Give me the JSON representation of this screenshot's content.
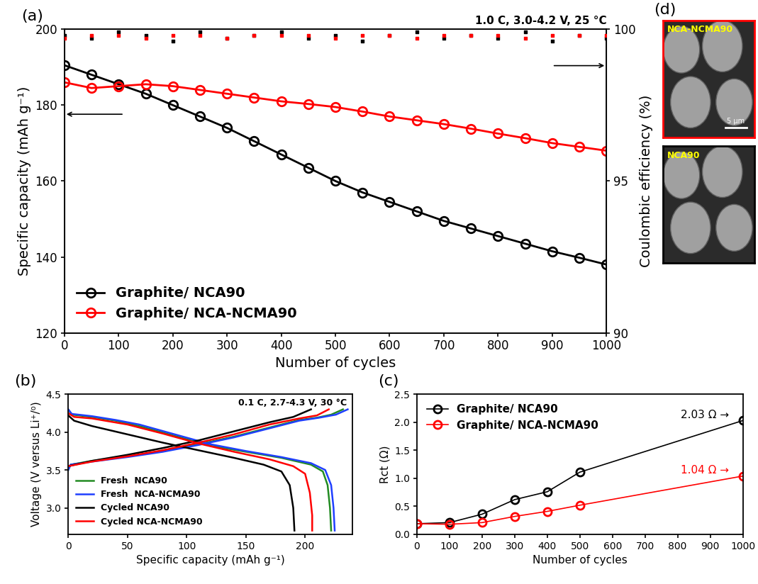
{
  "chart_data": [
    {
      "type": "line",
      "title": "(a)",
      "annotations": [
        "1.0 C, 3.0-4.2 V, 25 °C"
      ],
      "x_label": "Number of cycles",
      "y_label": "Specific capacity (mAh g⁻¹)",
      "y2_label": "Coulombic efficiency (%)",
      "xlim": [
        0,
        1000
      ],
      "xticks": [
        0,
        100,
        200,
        300,
        400,
        500,
        600,
        700,
        800,
        900,
        1000
      ],
      "ylim": [
        120,
        200
      ],
      "yticks": [
        120,
        140,
        160,
        180,
        200
      ],
      "y2lim": [
        90,
        100
      ],
      "y2ticks": [
        90,
        95,
        100
      ],
      "legend": "lower left",
      "x": [
        0,
        50,
        100,
        150,
        200,
        250,
        300,
        350,
        400,
        450,
        500,
        550,
        600,
        650,
        700,
        750,
        800,
        850,
        900,
        950,
        1000
      ],
      "series": [
        {
          "name": "Graphite/ NCA90",
          "color": "#000000",
          "marker": "o",
          "values": [
            190.5,
            188,
            185.5,
            183,
            180,
            177,
            174,
            170.5,
            167,
            163.5,
            160,
            157,
            154.5,
            152,
            149.5,
            147.5,
            145.5,
            143.5,
            141.5,
            139.8,
            138
          ]
        },
        {
          "name": "Graphite/ NCA-NCMA90",
          "color": "#ff0000",
          "marker": "o",
          "values": [
            186,
            184.5,
            185,
            185.5,
            185,
            184,
            183,
            182,
            181,
            180.3,
            179.5,
            178.3,
            177,
            176,
            175,
            173.8,
            172.5,
            171.3,
            170,
            169,
            168
          ]
        },
        {
          "type": "scatter",
          "axis": "y2",
          "color": "#000000",
          "marker": "s",
          "values": [
            99.8,
            99.7,
            99.9,
            99.8,
            99.6,
            99.9,
            99.7,
            99.8,
            99.9,
            99.7,
            99.8,
            99.6,
            99.8,
            99.9,
            99.7,
            99.8,
            99.7,
            99.9,
            99.6,
            99.8,
            99.7
          ]
        },
        {
          "type": "scatter",
          "axis": "y2",
          "color": "#ff0000",
          "marker": "s",
          "values": [
            99.7,
            99.8,
            99.8,
            99.7,
            99.8,
            99.8,
            99.7,
            99.8,
            99.8,
            99.8,
            99.7,
            99.8,
            99.8,
            99.7,
            99.8,
            99.8,
            99.8,
            99.7,
            99.8,
            99.8,
            99.8
          ]
        }
      ]
    },
    {
      "type": "line",
      "title": "(b)",
      "annotations": [
        "0.1 C, 2.7-4.3 V, 30 °C"
      ],
      "x_label": "Specific capacity (mAh g⁻¹)",
      "y_label": "Voltage (V versus Li⁺/⁰)",
      "xlim": [
        0,
        240
      ],
      "xticks": [
        0,
        50,
        100,
        150,
        200
      ],
      "ylim": [
        2.65,
        4.5
      ],
      "yticks": [
        3.0,
        3.5,
        4.0,
        4.5
      ],
      "legend": "lower left",
      "series": [
        {
          "name": "Fresh  NCA90",
          "color": "#228b22",
          "x": [
            0,
            2,
            20,
            50,
            80,
            110,
            140,
            170,
            195,
            210,
            222,
            232,
            null,
            0,
            3,
            20,
            40,
            60,
            90,
            120,
            150,
            180,
            205,
            215,
            219,
            221,
            222
          ],
          "values": [
            3.5,
            3.57,
            3.62,
            3.68,
            3.75,
            3.84,
            3.94,
            4.06,
            4.16,
            4.19,
            4.23,
            4.3,
            null,
            4.3,
            4.23,
            4.2,
            4.15,
            4.08,
            3.95,
            3.82,
            3.74,
            3.66,
            3.57,
            3.48,
            3.3,
            3.0,
            2.7
          ]
        },
        {
          "name": "Fresh  NCA-NCMA90",
          "color": "#1f3fff",
          "x": [
            0,
            2,
            20,
            50,
            80,
            110,
            140,
            170,
            195,
            212,
            226,
            236,
            null,
            0,
            3,
            20,
            40,
            60,
            90,
            120,
            150,
            180,
            205,
            217,
            222,
            224,
            225
          ],
          "values": [
            3.5,
            3.57,
            3.61,
            3.67,
            3.74,
            3.83,
            3.93,
            4.05,
            4.15,
            4.19,
            4.23,
            4.3,
            null,
            4.3,
            4.24,
            4.21,
            4.16,
            4.1,
            3.97,
            3.84,
            3.75,
            3.67,
            3.59,
            3.5,
            3.3,
            3.0,
            2.7
          ]
        },
        {
          "name": "Cycled NCA90",
          "color": "#000000",
          "x": [
            0,
            20,
            50,
            80,
            110,
            140,
            170,
            190,
            205,
            null,
            0,
            5,
            20,
            50,
            80,
            110,
            140,
            165,
            180,
            187,
            190,
            191
          ],
          "values": [
            3.55,
            3.62,
            3.7,
            3.79,
            3.89,
            4.01,
            4.13,
            4.2,
            4.3,
            null,
            4.22,
            4.15,
            4.08,
            3.97,
            3.86,
            3.76,
            3.66,
            3.57,
            3.48,
            3.3,
            3.0,
            2.7
          ]
        },
        {
          "name": "Cycled NCA-NCMA90",
          "color": "#ff0000",
          "x": [
            0,
            20,
            50,
            80,
            110,
            140,
            170,
            195,
            210,
            220,
            null,
            0,
            5,
            20,
            50,
            80,
            110,
            140,
            170,
            190,
            200,
            204,
            206,
            206
          ],
          "values": [
            3.55,
            3.61,
            3.68,
            3.76,
            3.86,
            3.97,
            4.1,
            4.18,
            4.22,
            4.3,
            null,
            4.25,
            4.2,
            4.18,
            4.1,
            3.98,
            3.85,
            3.74,
            3.64,
            3.55,
            3.45,
            3.2,
            2.9,
            2.7
          ]
        }
      ]
    },
    {
      "type": "line",
      "title": "(c)",
      "x_label": "Number of cycles",
      "y_label": "Rct (Ω)",
      "xlim": [
        0,
        1000
      ],
      "xticks": [
        0,
        100,
        200,
        300,
        400,
        500,
        600,
        700,
        800,
        900,
        1000
      ],
      "ylim": [
        0.0,
        2.5
      ],
      "yticks": [
        0.0,
        0.5,
        1.0,
        1.5,
        2.0,
        2.5
      ],
      "legend": "upper left",
      "x": [
        0,
        100,
        200,
        300,
        400,
        500,
        1000
      ],
      "series": [
        {
          "name": "Graphite/ NCA90",
          "color": "#000000",
          "marker": "o",
          "annotation": "2.03 Ω →",
          "values": [
            0.19,
            0.21,
            0.36,
            0.62,
            0.76,
            1.11,
            2.03
          ]
        },
        {
          "name": "Graphite/ NCA-NCMA90",
          "color": "#ff0000",
          "marker": "o",
          "annotation": "1.04 Ω →",
          "values": [
            0.19,
            0.18,
            0.21,
            0.32,
            0.41,
            0.52,
            1.04
          ]
        }
      ]
    },
    {
      "type": "image",
      "title": "(d)",
      "panels": [
        {
          "label": "NCA-NCMA90",
          "scale_bar": "5 μm"
        },
        {
          "label": "NCA90"
        }
      ]
    }
  ]
}
